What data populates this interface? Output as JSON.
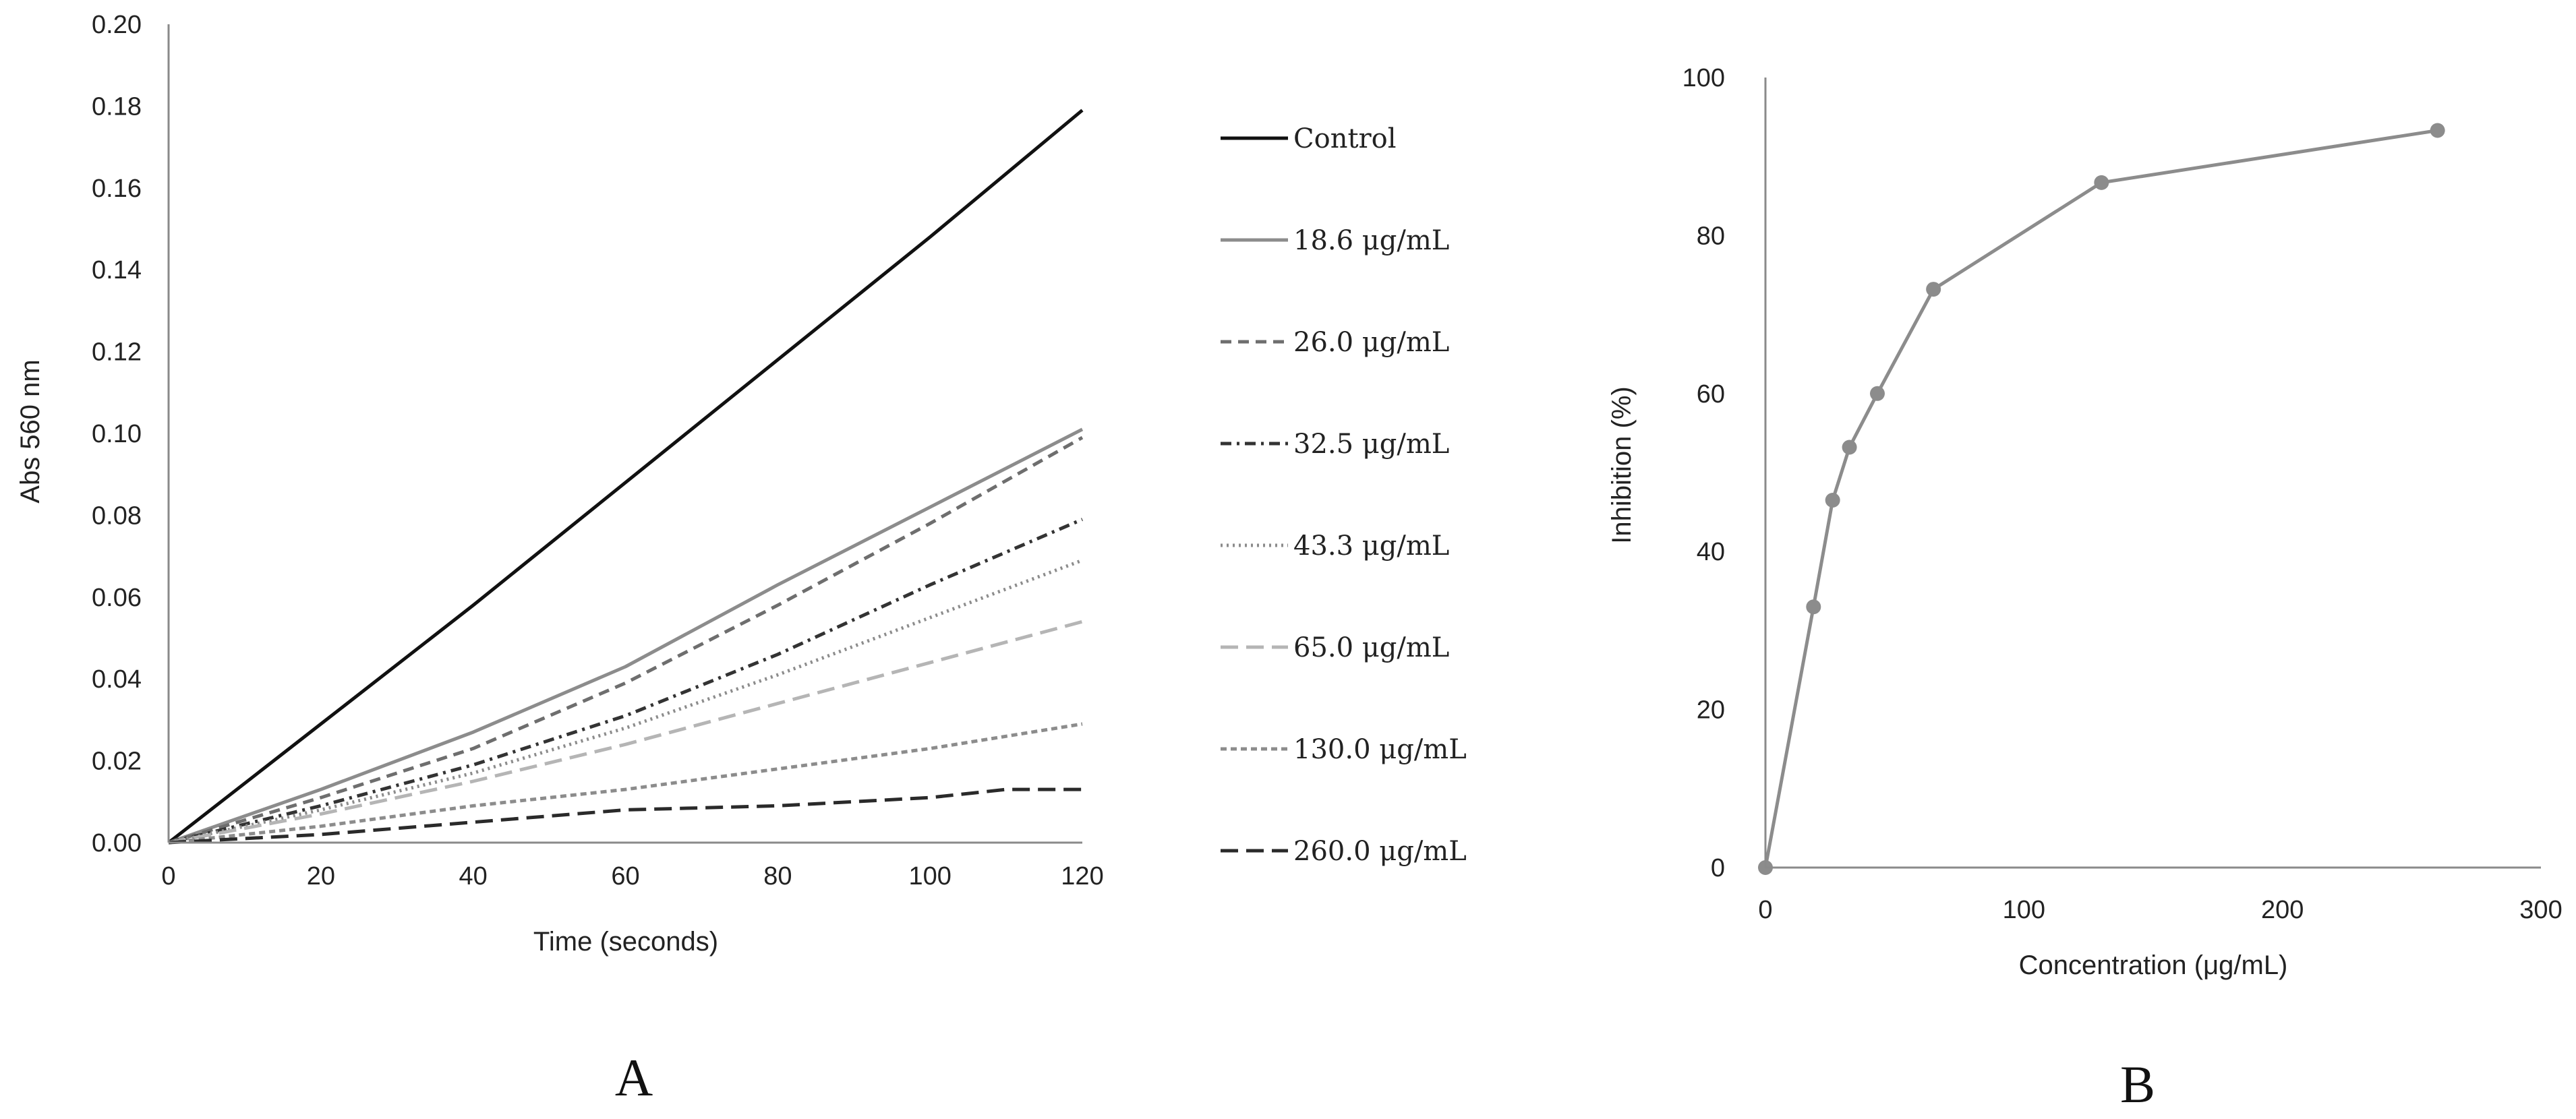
{
  "chart_data": [
    {
      "type": "line",
      "panel_label": "A",
      "xlabel": "Time (seconds)",
      "ylabel": "Abs 560 nm",
      "xlim": [
        0,
        120
      ],
      "ylim": [
        0,
        0.2
      ],
      "x_ticks": [
        "0",
        "20",
        "40",
        "60",
        "80",
        "100",
        "120"
      ],
      "y_ticks": [
        "0.00",
        "0.02",
        "0.04",
        "0.06",
        "0.08",
        "0.10",
        "0.12",
        "0.14",
        "0.16",
        "0.18",
        "0.20"
      ],
      "grid": false,
      "legend_position": "right",
      "series": [
        {
          "name": "Control",
          "color": "#111111",
          "dash": "solid",
          "points": [
            [
              0,
              0
            ],
            [
              20,
              0.029
            ],
            [
              40,
              0.058
            ],
            [
              60,
              0.088
            ],
            [
              80,
              0.118
            ],
            [
              100,
              0.148
            ],
            [
              120,
              0.179
            ]
          ]
        },
        {
          "name": "18.6 μg/mL",
          "color": "#8c8c8c",
          "dash": "solid",
          "points": [
            [
              0,
              0
            ],
            [
              20,
              0.013
            ],
            [
              40,
              0.027
            ],
            [
              60,
              0.043
            ],
            [
              80,
              0.063
            ],
            [
              100,
              0.082
            ],
            [
              120,
              0.101
            ]
          ]
        },
        {
          "name": "26.0 μg/mL",
          "color": "#6e6e6e",
          "dash": "dash",
          "points": [
            [
              0,
              0
            ],
            [
              20,
              0.011
            ],
            [
              40,
              0.023
            ],
            [
              60,
              0.039
            ],
            [
              80,
              0.058
            ],
            [
              100,
              0.078
            ],
            [
              120,
              0.099
            ]
          ]
        },
        {
          "name": "32.5 μg/mL",
          "color": "#333333",
          "dash": "dashdot",
          "points": [
            [
              0,
              0
            ],
            [
              20,
              0.009
            ],
            [
              40,
              0.019
            ],
            [
              60,
              0.031
            ],
            [
              80,
              0.046
            ],
            [
              100,
              0.063
            ],
            [
              120,
              0.079
            ]
          ]
        },
        {
          "name": "43.3 μg/mL",
          "color": "#8c8c8c",
          "dash": "dot",
          "points": [
            [
              0,
              0
            ],
            [
              20,
              0.008
            ],
            [
              40,
              0.017
            ],
            [
              60,
              0.028
            ],
            [
              80,
              0.041
            ],
            [
              100,
              0.055
            ],
            [
              120,
              0.069
            ]
          ]
        },
        {
          "name": "65.0 μg/mL",
          "color": "#b5b5b5",
          "dash": "longdash",
          "points": [
            [
              0,
              0
            ],
            [
              20,
              0.007
            ],
            [
              40,
              0.015
            ],
            [
              60,
              0.024
            ],
            [
              80,
              0.034
            ],
            [
              100,
              0.044
            ],
            [
              120,
              0.054
            ]
          ]
        },
        {
          "name": "130.0 μg/mL",
          "color": "#8c8c8c",
          "dash": "shortdash",
          "points": [
            [
              0,
              0
            ],
            [
              20,
              0.004
            ],
            [
              40,
              0.009
            ],
            [
              60,
              0.013
            ],
            [
              80,
              0.018
            ],
            [
              100,
              0.023
            ],
            [
              120,
              0.029
            ]
          ]
        },
        {
          "name": "260.0 μg/mL",
          "color": "#2a2a2a",
          "dash": "longdash",
          "points": [
            [
              0,
              0
            ],
            [
              20,
              0.002
            ],
            [
              40,
              0.005
            ],
            [
              60,
              0.008
            ],
            [
              80,
              0.009
            ],
            [
              100,
              0.011
            ],
            [
              110,
              0.013
            ],
            [
              120,
              0.013
            ]
          ]
        }
      ]
    },
    {
      "type": "line",
      "panel_label": "B",
      "xlabel": "Concentration (μg/mL)",
      "ylabel": "Inhibition (%)",
      "xlim": [
        0,
        300
      ],
      "ylim": [
        0,
        100
      ],
      "x_ticks": [
        "0",
        "100",
        "200",
        "300"
      ],
      "y_ticks": [
        "0",
        "20",
        "40",
        "60",
        "80",
        "100"
      ],
      "grid": false,
      "series": [
        {
          "name": "Inhibition",
          "color": "#8c8c8c",
          "markers": true,
          "x": [
            0,
            18.6,
            26.0,
            32.5,
            43.3,
            65.0,
            130.0,
            260.0
          ],
          "y": [
            0,
            33.0,
            46.5,
            53.2,
            60.0,
            73.2,
            86.7,
            93.3
          ]
        }
      ]
    }
  ]
}
